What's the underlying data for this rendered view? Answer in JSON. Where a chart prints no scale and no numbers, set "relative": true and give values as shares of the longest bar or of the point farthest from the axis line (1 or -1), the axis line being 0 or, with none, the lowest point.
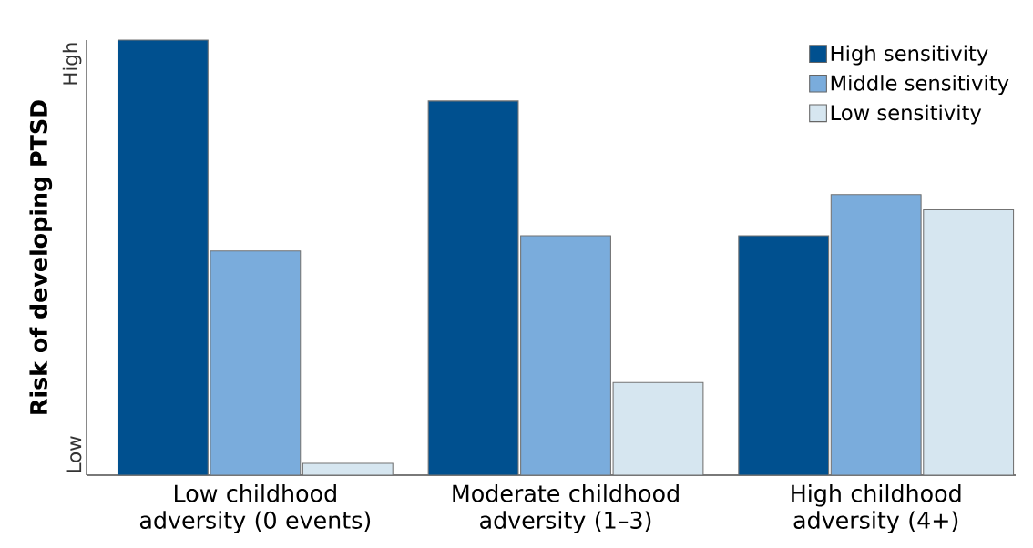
{
  "chart_data": {
    "type": "bar",
    "ylabel": "Risk of developing PTSD",
    "categories": [
      "Low childhood adversity (0 events)",
      "Moderate childhood adversity (1–3)",
      "High childhood adversity (4+)"
    ],
    "series": [
      {
        "name": "High sensitivity",
        "color": "#00508f",
        "values": [
          1.0,
          0.86,
          0.55
        ]
      },
      {
        "name": "Middle sensitivity",
        "color": "#7aacdc",
        "values": [
          0.515,
          0.55,
          0.645
        ]
      },
      {
        "name": "Low sensitivity",
        "color": "#d6e6f0",
        "values": [
          0.027,
          0.213,
          0.61
        ]
      }
    ],
    "relative": true,
    "annotations": [
      "Low",
      "High"
    ],
    "grid": false,
    "legend": "top right"
  }
}
